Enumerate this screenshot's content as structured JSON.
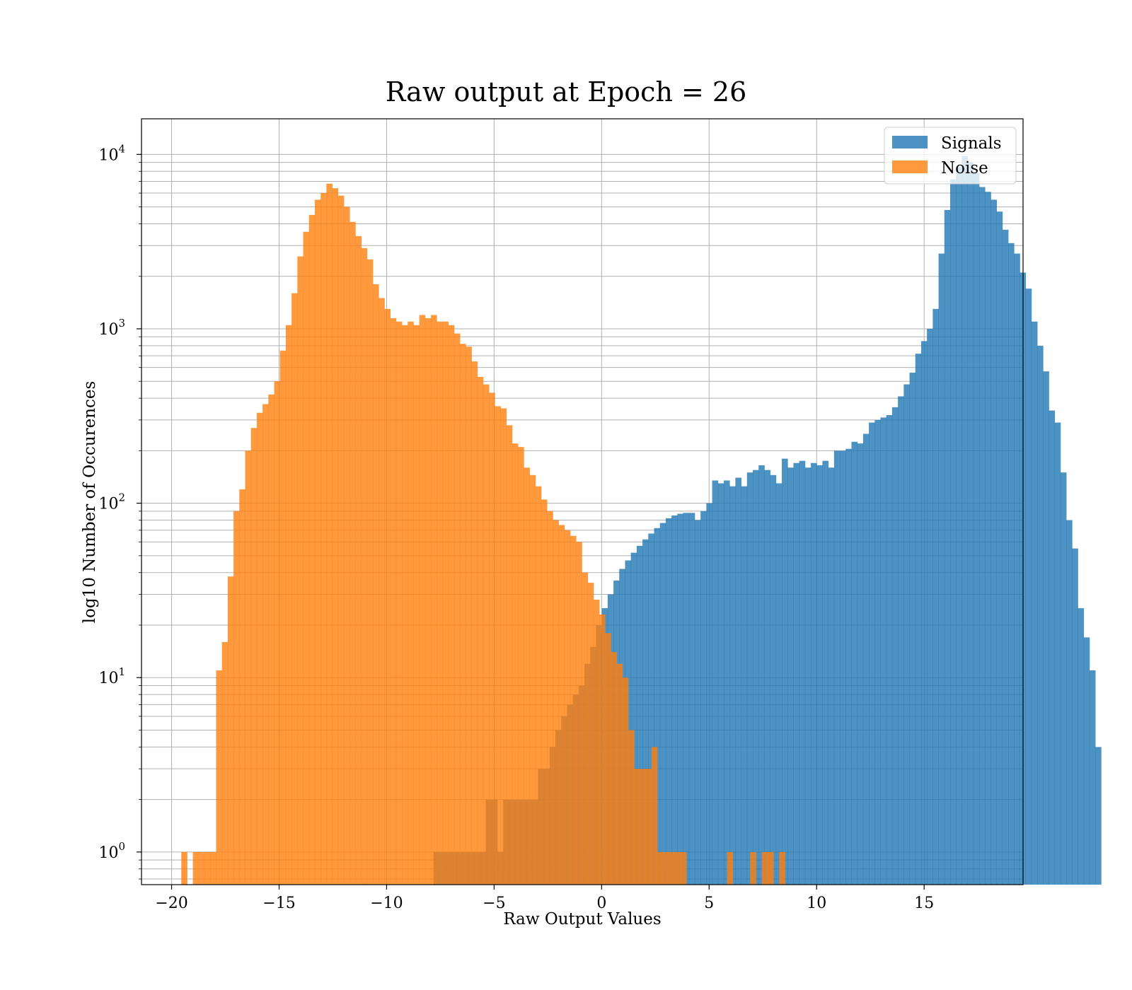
{
  "chart_data": {
    "type": "bar",
    "title": "Raw output at Epoch = 26",
    "xlabel": "Raw Output Values",
    "ylabel": "log10 Number of Occurences",
    "yscale": "log",
    "xlim": [
      -21.4,
      19.6
    ],
    "ylim": [
      0.65,
      16000
    ],
    "xticks": [
      -20,
      -15,
      -10,
      -5,
      0,
      5,
      10,
      15
    ],
    "xtick_labels": [
      "−20",
      "−15",
      "−10",
      "−5",
      "0",
      "5",
      "10",
      "15"
    ],
    "yticks": [
      {
        "value": 1,
        "base": "10",
        "exp": "0"
      },
      {
        "value": 10,
        "base": "10",
        "exp": "1"
      },
      {
        "value": 100,
        "base": "10",
        "exp": "2"
      },
      {
        "value": 1000,
        "base": "10",
        "exp": "3"
      },
      {
        "value": 10000,
        "base": "10",
        "exp": "4"
      }
    ],
    "grid": true,
    "legend_position": "top-right",
    "bin_width": 0.27,
    "series": [
      {
        "name": "Signals",
        "color": "#1f77b4",
        "alpha": 0.8,
        "bin_start": -7.82,
        "values": [
          1,
          1,
          1,
          1,
          1,
          1,
          1,
          1,
          1,
          2,
          2,
          1,
          2,
          2,
          2,
          2,
          2,
          2,
          3,
          3,
          4,
          5,
          6,
          7,
          8,
          9,
          12,
          15,
          20,
          25,
          30,
          36,
          42,
          47,
          52,
          57,
          62,
          67,
          72,
          77,
          82,
          85,
          87,
          88,
          88,
          80,
          90,
          100,
          135,
          130,
          135,
          125,
          140,
          125,
          150,
          155,
          165,
          155,
          145,
          130,
          180,
          160,
          170,
          175,
          160,
          170,
          165,
          175,
          160,
          200,
          200,
          205,
          225,
          220,
          250,
          290,
          300,
          310,
          320,
          355,
          410,
          480,
          560,
          720,
          850,
          1000,
          1300,
          2700,
          4800,
          7200,
          8500,
          9800,
          9000,
          7800,
          6500,
          6100,
          5500,
          4700,
          3700,
          3100,
          2700,
          2100,
          1700,
          1100,
          800,
          570,
          340,
          290,
          150,
          80,
          55,
          25,
          17,
          11,
          4
        ]
      },
      {
        "name": "Noise",
        "color": "#ff7f0e",
        "alpha": 0.8,
        "bin_start": -19.55,
        "values": [
          1,
          0,
          1,
          1,
          1,
          1,
          11,
          16,
          38,
          90,
          120,
          200,
          270,
          330,
          370,
          420,
          500,
          750,
          1050,
          1600,
          2600,
          3600,
          4500,
          5500,
          6000,
          6800,
          6400,
          5800,
          5000,
          4100,
          3400,
          2900,
          2500,
          1800,
          1500,
          1300,
          1150,
          1100,
          1050,
          1100,
          1050,
          1200,
          1150,
          1200,
          1100,
          1100,
          1050,
          940,
          820,
          790,
          650,
          530,
          480,
          430,
          360,
          350,
          280,
          220,
          210,
          160,
          145,
          125,
          105,
          90,
          80,
          75,
          70,
          65,
          60,
          40,
          35,
          28,
          23,
          18,
          14,
          12,
          10,
          5,
          3,
          3,
          3,
          4,
          1,
          1,
          1,
          1,
          1,
          0,
          0,
          0,
          0,
          0,
          0,
          0,
          1,
          0,
          0,
          0,
          1,
          0,
          1,
          1,
          0,
          1
        ]
      }
    ]
  }
}
